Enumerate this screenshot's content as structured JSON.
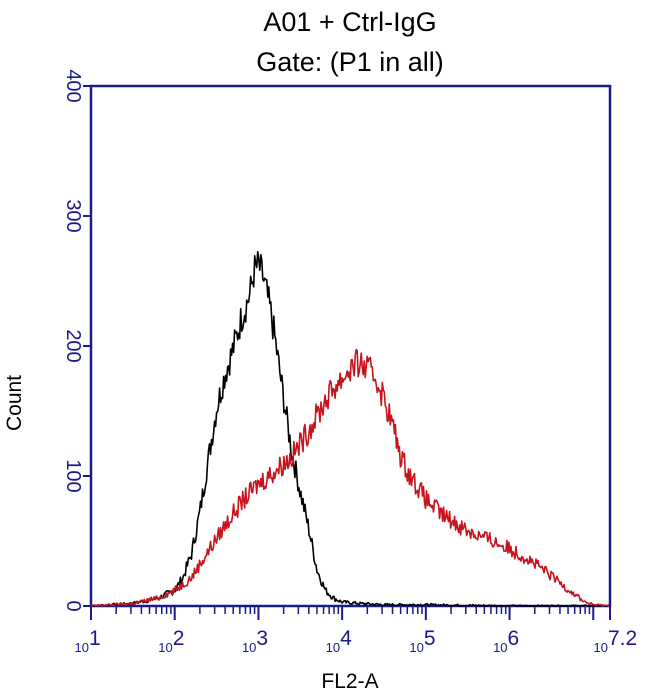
{
  "chart_data": {
    "type": "line",
    "title": "A01 + Ctrl-IgG",
    "subtitle": "Gate: (P1 in all)",
    "xlabel": "FL2-A",
    "ylabel": "Count",
    "x_scale": "log",
    "xlim": [
      1,
      7.2
    ],
    "ylim": [
      0,
      400
    ],
    "x_ticks": [
      {
        "base": "10",
        "exp": "1"
      },
      {
        "base": "10",
        "exp": "2"
      },
      {
        "base": "10",
        "exp": "3"
      },
      {
        "base": "10",
        "exp": "4"
      },
      {
        "base": "10",
        "exp": "5"
      },
      {
        "base": "10",
        "exp": "6"
      },
      {
        "base": "10",
        "exp": "7.2"
      }
    ],
    "y_ticks": [
      "0",
      "100",
      "200",
      "300",
      "400"
    ],
    "grid": false,
    "legend": "none",
    "series": [
      {
        "color": "#000000",
        "x": [
          1.0,
          1.5,
          1.8,
          2.0,
          2.1,
          2.2,
          2.3,
          2.4,
          2.5,
          2.6,
          2.7,
          2.8,
          2.9,
          2.95,
          3.0,
          3.05,
          3.1,
          3.15,
          3.2,
          3.3,
          3.4,
          3.5,
          3.6,
          3.7,
          3.8,
          3.9,
          4.0,
          4.2,
          4.5,
          5.0,
          6.0,
          7.2
        ],
        "y": [
          0,
          2,
          6,
          12,
          22,
          40,
          72,
          112,
          152,
          178,
          198,
          222,
          240,
          258,
          262,
          254,
          240,
          225,
          205,
          160,
          118,
          88,
          60,
          28,
          12,
          6,
          3,
          2,
          1,
          1,
          0,
          0
        ]
      },
      {
        "color": "#c8141e",
        "x": [
          1.0,
          1.5,
          1.8,
          2.0,
          2.2,
          2.4,
          2.6,
          2.8,
          3.0,
          3.2,
          3.4,
          3.6,
          3.8,
          3.9,
          4.0,
          4.1,
          4.2,
          4.3,
          4.4,
          4.5,
          4.6,
          4.7,
          4.8,
          5.0,
          5.2,
          5.4,
          5.6,
          5.8,
          6.0,
          6.2,
          6.4,
          6.6,
          6.8,
          6.9,
          7.0,
          7.2
        ],
        "y": [
          0,
          2,
          6,
          12,
          22,
          42,
          62,
          80,
          94,
          104,
          115,
          135,
          158,
          168,
          175,
          183,
          187,
          182,
          176,
          160,
          140,
          115,
          102,
          82,
          70,
          62,
          55,
          50,
          44,
          37,
          28,
          18,
          8,
          3,
          1,
          0
        ]
      }
    ]
  }
}
